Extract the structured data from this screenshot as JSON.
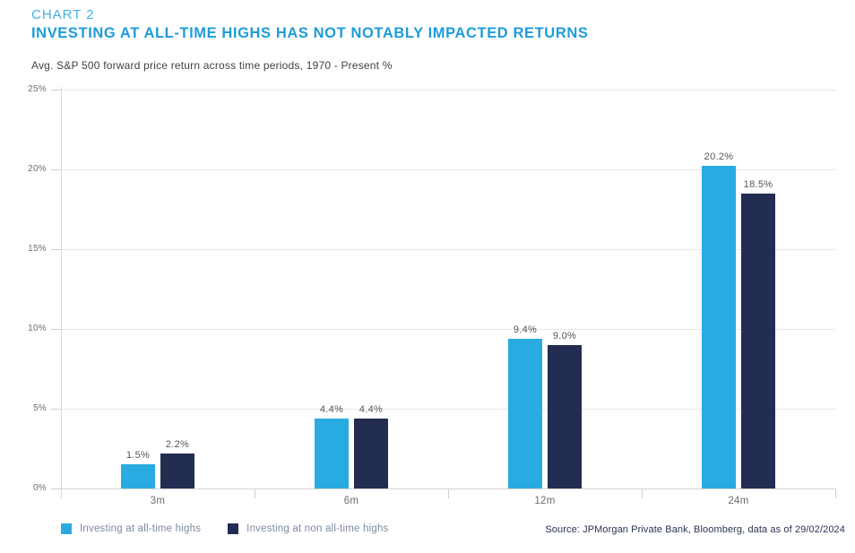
{
  "header": {
    "chart_label": "CHART 2",
    "title": "INVESTING AT ALL-TIME HIGHS HAS NOT NOTABLY IMPACTED RETURNS",
    "subtitle": "Avg. S&P 500 forward price return across time periods, 1970 - Present %"
  },
  "chart_data": {
    "type": "bar",
    "title": "INVESTING AT ALL-TIME HIGHS HAS NOT NOTABLY IMPACTED RETURNS",
    "subtitle": "Avg. S&P 500 forward price return across time periods, 1970 - Present %",
    "categories": [
      "3m",
      "6m",
      "12m",
      "24m"
    ],
    "series": [
      {
        "name": "Investing at all-time highs",
        "values": [
          1.5,
          4.4,
          9.4,
          20.2
        ],
        "color": "#29ABE2"
      },
      {
        "name": "Investing at non all-time highs",
        "values": [
          2.2,
          4.4,
          9.0,
          18.5
        ],
        "color": "#232D52"
      }
    ],
    "data_labels": [
      [
        "1.5%",
        "4.4%",
        "9.4%",
        "20.2%"
      ],
      [
        "2.2%",
        "4.4%",
        "9.0%",
        "18.5%"
      ]
    ],
    "ylim": [
      0,
      25
    ],
    "yticks": [
      0,
      5,
      10,
      15,
      20,
      25
    ],
    "ytick_labels": [
      "0%",
      "5%",
      "10%",
      "15%",
      "20%",
      "25%"
    ],
    "grid": "horizontal",
    "legend_position": "bottom-left"
  },
  "legend": {
    "items": [
      {
        "label": "Investing at all-time highs",
        "color": "#29ABE2"
      },
      {
        "label": "Investing at non all-time highs",
        "color": "#232D52"
      }
    ]
  },
  "footer": {
    "source": "Source: JPMorgan Private Bank, Bloomberg, data as of 29/02/2024"
  },
  "colors": {
    "chart_label_blue": "#45B1E6",
    "title_blue": "#1E9CD9",
    "subtitle_gray": "#414141",
    "axis_text_gray": "#6E6E6E",
    "value_label_gray": "#54545E",
    "legend_text_gray_blue": "#7D8AA0",
    "source_navy": "#2A3352",
    "gridline_gray": "#E7E7E7",
    "series_light_blue": "#29ABE2",
    "series_navy": "#232D52"
  }
}
